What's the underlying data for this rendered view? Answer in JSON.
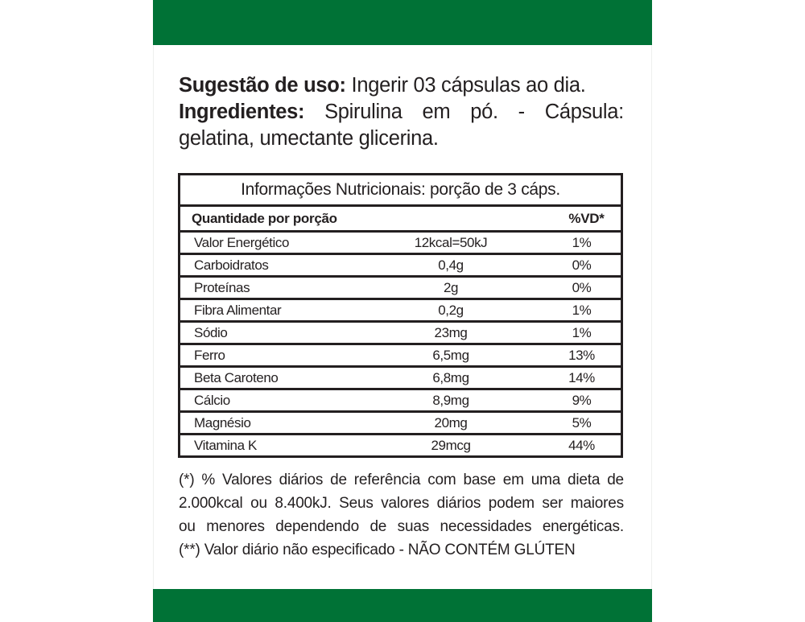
{
  "colors": {
    "brand_green": "#007236",
    "text": "#231f20"
  },
  "intro": {
    "usage_label": "Sugestão de uso:",
    "usage_text": "Ingerir 03 cápsulas ao dia.",
    "ingredients_label": "Ingredientes:",
    "ingredients_words": [
      "Spirulina",
      "em",
      "pó.",
      "-",
      "Cápsula:"
    ],
    "ingredients_line2": "gelatina, umectante glicerina."
  },
  "nutrition": {
    "title": "Informações Nutricionais: porção de 3 cáps.",
    "header": {
      "quantity": "Quantidade por porção",
      "dv": "%VD*"
    },
    "rows": [
      {
        "name": "Valor Energético",
        "amount": "12kcal=50kJ",
        "dv": "1%"
      },
      {
        "name": "Carboidratos",
        "amount": "0,4g",
        "dv": "0%"
      },
      {
        "name": "Proteínas",
        "amount": "2g",
        "dv": "0%"
      },
      {
        "name": "Fibra Alimentar",
        "amount": "0,2g",
        "dv": "1%"
      },
      {
        "name": "Sódio",
        "amount": "23mg",
        "dv": "1%"
      },
      {
        "name": "Ferro",
        "amount": "6,5mg",
        "dv": "13%"
      },
      {
        "name": "Beta Caroteno",
        "amount": "6,8mg",
        "dv": "14%"
      },
      {
        "name": "Cálcio",
        "amount": "8,9mg",
        "dv": "9%"
      },
      {
        "name": "Magnésio",
        "amount": "20mg",
        "dv": "5%"
      },
      {
        "name": "Vitamina K",
        "amount": "29mcg",
        "dv": "44%"
      }
    ]
  },
  "footnote": {
    "line1": [
      "(*)",
      "%",
      "Valores",
      "diários",
      "de",
      "referência",
      "com",
      "base",
      "em",
      "uma",
      "dieta",
      "de"
    ],
    "line2": [
      "2.000kcal",
      "ou",
      "8.400kJ.",
      "Seus",
      "valores",
      "diários",
      "podem",
      "ser",
      "maiores"
    ],
    "line3": [
      "ou",
      "menores",
      "dependendo",
      "de",
      "suas",
      "necessidades",
      "energéticas."
    ],
    "line4": "(**) Valor diário não especificado - NÃO CONTÉM GLÚTEN"
  }
}
